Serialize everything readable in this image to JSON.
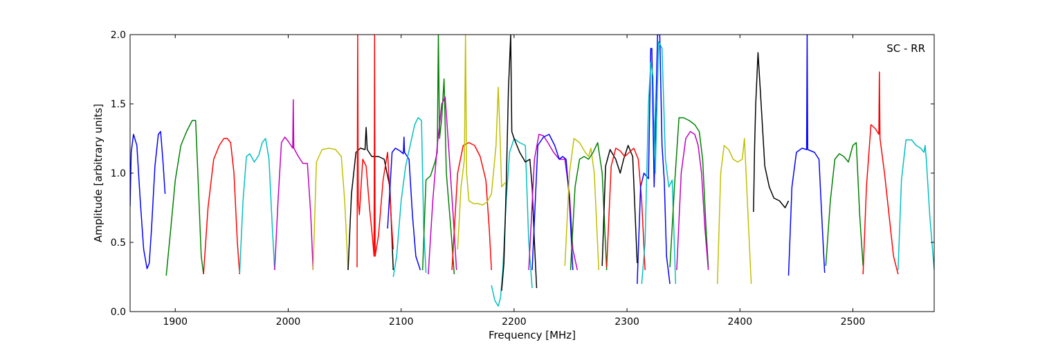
{
  "chart_data": {
    "type": "line",
    "title": "",
    "annotation": "SC - RR",
    "xlabel": "Frequency [MHz]",
    "ylabel": "Amplitude [arbitrary units]",
    "xlim": [
      1860,
      2572
    ],
    "ylim": [
      0.0,
      2.0
    ],
    "x_ticks": [
      1900,
      2000,
      2100,
      2200,
      2300,
      2400,
      2500
    ],
    "y_ticks": [
      0.0,
      0.5,
      1.0,
      1.5,
      2.0
    ],
    "x_tick_labels": [
      "1900",
      "2000",
      "2100",
      "2200",
      "2300",
      "2400",
      "2500"
    ],
    "y_tick_labels": [
      "0.0",
      "0.5",
      "1.0",
      "1.5",
      "2.0"
    ],
    "grid": false,
    "legend": "none",
    "series": [
      {
        "color": "#0000ff",
        "x": [
          1860,
          1861,
          1863,
          1866,
          1869,
          1872,
          1875,
          1877,
          1879,
          1882,
          1885,
          1887,
          1889,
          1891
        ],
        "y": [
          0.76,
          1.15,
          1.28,
          1.2,
          0.8,
          0.45,
          0.31,
          0.35,
          0.6,
          1.05,
          1.28,
          1.3,
          1.1,
          0.85
        ]
      },
      {
        "color": "#008000",
        "x": [
          1892,
          1896,
          1900,
          1905,
          1910,
          1915,
          1918,
          1920,
          1923,
          1925
        ],
        "y": [
          0.26,
          0.6,
          0.95,
          1.2,
          1.3,
          1.38,
          1.38,
          1.0,
          0.4,
          0.27
        ]
      },
      {
        "color": "#ff0000",
        "x": [
          1925,
          1929,
          1934,
          1939,
          1943,
          1946,
          1949,
          1952,
          1955,
          1957
        ],
        "y": [
          0.27,
          0.75,
          1.1,
          1.2,
          1.25,
          1.25,
          1.22,
          1.0,
          0.5,
          0.27
        ]
      },
      {
        "color": "#00bfbf",
        "x": [
          1957,
          1960,
          1963,
          1966,
          1970,
          1974,
          1977,
          1980,
          1983,
          1986,
          1988
        ],
        "y": [
          0.28,
          0.8,
          1.12,
          1.14,
          1.08,
          1.13,
          1.22,
          1.25,
          1.1,
          0.6,
          0.3
        ]
      },
      {
        "color": "#bf00bf",
        "x": [
          1988,
          1991,
          1994,
          1997,
          2000,
          2004,
          2004.5,
          2005,
          2009,
          2013,
          2017,
          2020,
          2022
        ],
        "y": [
          0.3,
          0.8,
          1.22,
          1.26,
          1.23,
          1.18,
          1.53,
          1.18,
          1.12,
          1.07,
          1.07,
          0.7,
          0.3
        ]
      },
      {
        "color": "#bfbf00",
        "x": [
          2022,
          2025,
          2030,
          2036,
          2042,
          2047,
          2050,
          2053
        ],
        "y": [
          0.3,
          1.08,
          1.17,
          1.18,
          1.17,
          1.12,
          0.8,
          0.3
        ]
      },
      {
        "color": "#000000",
        "x": [
          2053,
          2056,
          2060,
          2064,
          2068,
          2069,
          2070,
          2074,
          2080,
          2085,
          2090,
          2093
        ],
        "y": [
          0.3,
          0.85,
          1.15,
          1.18,
          1.17,
          1.33,
          1.17,
          1.12,
          1.12,
          1.1,
          0.9,
          0.3
        ]
      },
      {
        "color": "#ff0000",
        "x": [
          2061,
          2061.5,
          2062,
          2063,
          2066,
          2069,
          2072,
          2075,
          2076,
          2076.5,
          2077,
          2080,
          2084,
          2088,
          2091,
          2093
        ],
        "y": [
          0.32,
          2.0,
          0.8,
          0.7,
          1.1,
          1.05,
          0.75,
          0.5,
          0.4,
          2.0,
          0.4,
          0.55,
          0.95,
          1.15,
          0.7,
          0.45
        ]
      },
      {
        "color": "#0000ff",
        "x": [
          2088,
          2092,
          2095,
          2099,
          2102,
          2102.5,
          2103,
          2107,
          2110,
          2113,
          2117
        ],
        "y": [
          0.6,
          1.15,
          1.18,
          1.16,
          1.14,
          1.26,
          1.15,
          1.1,
          0.7,
          0.4,
          0.3
        ]
      },
      {
        "color": "#00bfbf",
        "x": [
          2093,
          2096,
          2100,
          2104,
          2108,
          2112,
          2115,
          2118,
          2120,
          2122
        ],
        "y": [
          0.25,
          0.4,
          0.8,
          1.05,
          1.2,
          1.35,
          1.4,
          1.38,
          0.6,
          0.28
        ]
      },
      {
        "color": "#008000",
        "x": [
          2119,
          2122,
          2126,
          2130,
          2132,
          2133,
          2134,
          2136,
          2138,
          2140,
          2144,
          2147
        ],
        "y": [
          0.3,
          0.95,
          0.98,
          1.08,
          1.15,
          2.0,
          1.25,
          1.4,
          1.68,
          1.0,
          0.6,
          0.27
        ]
      },
      {
        "color": "#bf00bf",
        "x": [
          2124,
          2128,
          2132,
          2136,
          2139,
          2142,
          2146,
          2149
        ],
        "y": [
          0.27,
          0.8,
          1.2,
          1.5,
          1.55,
          1.2,
          0.7,
          0.3
        ]
      },
      {
        "color": "#ff0000",
        "x": [
          2145,
          2150,
          2155,
          2160,
          2165,
          2170,
          2175,
          2178,
          2180
        ],
        "y": [
          0.3,
          1.0,
          1.2,
          1.22,
          1.2,
          1.12,
          0.95,
          0.6,
          0.3
        ]
      },
      {
        "color": "#bfbf00",
        "x": [
          2150,
          2153,
          2156,
          2157,
          2158,
          2160,
          2164,
          2168,
          2172,
          2176,
          2180,
          2184,
          2186,
          2187,
          2189,
          2192
        ],
        "y": [
          0.45,
          0.9,
          1.1,
          2.0,
          1.0,
          0.8,
          0.78,
          0.78,
          0.77,
          0.79,
          0.85,
          1.2,
          1.62,
          1.4,
          0.9,
          0.93
        ]
      },
      {
        "color": "#00bfbf",
        "x": [
          2180,
          2183,
          2186,
          2188,
          2190,
          2193,
          2196,
          2200,
          2205,
          2210,
          2213,
          2216
        ],
        "y": [
          0.19,
          0.08,
          0.04,
          0.1,
          0.3,
          0.8,
          1.15,
          1.25,
          1.22,
          1.2,
          0.5,
          0.17
        ]
      },
      {
        "color": "#000000",
        "x": [
          2189,
          2191,
          2193,
          2195,
          2197,
          2198,
          2200,
          2205,
          2210,
          2214,
          2216,
          2218,
          2220
        ],
        "y": [
          0.15,
          0.35,
          0.9,
          1.6,
          2.0,
          1.3,
          1.25,
          1.15,
          1.08,
          1.1,
          0.9,
          0.5,
          0.17
        ]
      },
      {
        "color": "#bf00bf",
        "x": [
          2213,
          2218,
          2222,
          2226,
          2230,
          2235,
          2240,
          2245,
          2249,
          2252,
          2256
        ],
        "y": [
          0.3,
          1.1,
          1.28,
          1.27,
          1.22,
          1.15,
          1.1,
          1.1,
          0.85,
          0.45,
          0.3
        ]
      },
      {
        "color": "#0000ff",
        "x": [
          2216,
          2221,
          2226,
          2231,
          2236,
          2240,
          2243,
          2246,
          2249,
          2252
        ],
        "y": [
          0.3,
          1.2,
          1.26,
          1.28,
          1.2,
          1.1,
          1.12,
          1.1,
          0.8,
          0.3
        ]
      },
      {
        "color": "#bfbf00",
        "x": [
          2245,
          2249,
          2253,
          2258,
          2263,
          2266,
          2268,
          2271,
          2275
        ],
        "y": [
          0.33,
          1.0,
          1.25,
          1.22,
          1.15,
          1.12,
          1.18,
          1.0,
          0.3
        ]
      },
      {
        "color": "#008000",
        "x": [
          2250,
          2254,
          2258,
          2262,
          2266,
          2270,
          2274,
          2278,
          2282
        ],
        "y": [
          0.3,
          0.9,
          1.1,
          1.12,
          1.1,
          1.15,
          1.22,
          1.0,
          0.3
        ]
      },
      {
        "color": "#000000",
        "x": [
          2278,
          2281,
          2285,
          2290,
          2294,
          2297,
          2301,
          2305,
          2309
        ],
        "y": [
          0.33,
          1.05,
          1.17,
          1.1,
          1.0,
          1.1,
          1.2,
          1.12,
          0.35
        ]
      },
      {
        "color": "#ff0000",
        "x": [
          2282,
          2286,
          2290,
          2294,
          2298,
          2302,
          2306,
          2310,
          2313,
          2316
        ],
        "y": [
          0.32,
          1.05,
          1.18,
          1.16,
          1.12,
          1.15,
          1.18,
          1.1,
          0.8,
          0.3
        ]
      },
      {
        "color": "#0000ff",
        "x": [
          2309,
          2312,
          2315,
          2319,
          2321,
          2322,
          2324,
          2327,
          2329,
          2331,
          2333,
          2335,
          2338
        ],
        "y": [
          0.2,
          0.9,
          1.0,
          0.96,
          1.9,
          1.9,
          0.9,
          2.0,
          2.0,
          1.2,
          0.95,
          0.4,
          0.2
        ]
      },
      {
        "color": "#00bfbf",
        "x": [
          2313,
          2316,
          2319,
          2321,
          2323,
          2325,
          2328,
          2331,
          2334,
          2337,
          2340,
          2343
        ],
        "y": [
          0.2,
          0.5,
          1.5,
          1.8,
          1.7,
          1.0,
          1.95,
          1.9,
          1.1,
          0.9,
          0.95,
          0.2
        ]
      },
      {
        "color": "#008000",
        "x": [
          2338,
          2342,
          2346,
          2350,
          2355,
          2360,
          2364,
          2367,
          2370,
          2372
        ],
        "y": [
          0.32,
          0.9,
          1.4,
          1.4,
          1.38,
          1.35,
          1.3,
          1.1,
          0.6,
          0.32
        ]
      },
      {
        "color": "#bf00bf",
        "x": [
          2344,
          2348,
          2352,
          2356,
          2360,
          2363,
          2366,
          2369,
          2372
        ],
        "y": [
          0.3,
          1.0,
          1.25,
          1.3,
          1.28,
          1.2,
          1.0,
          0.6,
          0.3
        ]
      },
      {
        "color": "#bfbf00",
        "x": [
          2380,
          2383,
          2386,
          2390,
          2394,
          2398,
          2402,
          2404,
          2406,
          2408,
          2410
        ],
        "y": [
          0.2,
          1.0,
          1.2,
          1.17,
          1.1,
          1.08,
          1.1,
          1.25,
          0.9,
          0.55,
          0.2
        ]
      },
      {
        "color": "#000000",
        "x": [
          2412,
          2413,
          2414,
          2416,
          2418,
          2422,
          2426,
          2430,
          2435,
          2440,
          2443
        ],
        "y": [
          0.72,
          1.2,
          1.5,
          1.87,
          1.6,
          1.05,
          0.9,
          0.82,
          0.8,
          0.75,
          0.8
        ]
      },
      {
        "color": "#0000ff",
        "x": [
          2443,
          2446,
          2450,
          2455,
          2459,
          2459.5,
          2460,
          2466,
          2470,
          2473,
          2475
        ],
        "y": [
          0.26,
          0.9,
          1.15,
          1.18,
          1.17,
          2.0,
          1.17,
          1.15,
          1.1,
          0.6,
          0.28
        ]
      },
      {
        "color": "#008000",
        "x": [
          2476,
          2480,
          2484,
          2488,
          2492,
          2496,
          2500,
          2503,
          2506,
          2509
        ],
        "y": [
          0.33,
          0.8,
          1.1,
          1.14,
          1.12,
          1.08,
          1.2,
          1.22,
          0.7,
          0.33
        ]
      },
      {
        "color": "#ff0000",
        "x": [
          2509,
          2512,
          2516,
          2520,
          2523,
          2523.5,
          2524,
          2528,
          2532,
          2536,
          2540
        ],
        "y": [
          0.27,
          0.9,
          1.35,
          1.32,
          1.28,
          1.73,
          1.25,
          1.0,
          0.7,
          0.4,
          0.27
        ]
      },
      {
        "color": "#00bfbf",
        "x": [
          2540,
          2543,
          2547,
          2552,
          2556,
          2560,
          2563,
          2564,
          2565,
          2568,
          2572
        ],
        "y": [
          0.3,
          0.95,
          1.24,
          1.24,
          1.2,
          1.18,
          1.15,
          1.2,
          1.1,
          0.7,
          0.3
        ]
      }
    ]
  }
}
